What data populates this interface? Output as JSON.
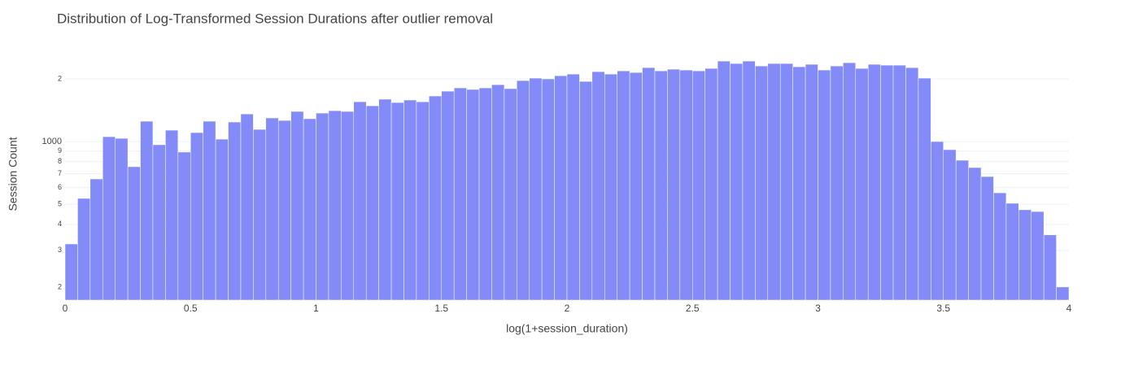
{
  "chart_data": {
    "type": "histogram",
    "title": "Distribution of Log-Transformed Session Durations after outlier removal",
    "x_label": "log(1+session_duration)",
    "y_label": "Session Count",
    "bins": [
      0,
      0.05,
      0.1,
      0.15,
      0.2,
      0.25,
      0.3,
      0.35,
      0.4,
      0.45,
      0.5,
      0.55,
      0.6,
      0.65,
      0.7,
      0.75,
      0.8,
      0.85,
      0.9,
      0.95,
      1,
      1.05,
      1.1,
      1.15,
      1.2,
      1.25,
      1.3,
      1.35,
      1.4,
      1.45,
      1.5,
      1.55,
      1.6,
      1.65,
      1.7,
      1.75,
      1.8,
      1.85,
      1.9,
      1.95,
      2,
      2.05,
      2.1,
      2.15,
      2.2,
      2.25,
      2.3,
      2.35,
      2.4,
      2.45,
      2.5,
      2.55,
      2.6,
      2.65,
      2.7,
      2.75,
      2.8,
      2.85,
      2.9,
      2.95,
      3,
      3.05,
      3.1,
      3.15,
      3.2,
      3.25,
      3.3,
      3.35,
      3.4,
      3.45,
      3.5,
      3.55,
      3.6,
      3.65,
      3.7,
      3.75,
      3.8,
      3.85,
      3.9,
      3.95,
      4
    ],
    "values": [
      322,
      533,
      661,
      1055,
      1036,
      757,
      1252,
      965,
      1134,
      890,
      1104,
      1252,
      1027,
      1241,
      1357,
      1144,
      1298,
      1263,
      1395,
      1287,
      1370,
      1407,
      1395,
      1553,
      1485,
      1597,
      1540,
      1583,
      1553,
      1655,
      1746,
      1810,
      1779,
      1810,
      1876,
      1795,
      1963,
      2017,
      2000,
      2071,
      2109,
      1945,
      2167,
      2109,
      2186,
      2147,
      2266,
      2186,
      2226,
      2206,
      2186,
      2246,
      2436,
      2371,
      2436,
      2307,
      2371,
      2371,
      2287,
      2350,
      2206,
      2307,
      2392,
      2246,
      2350,
      2328,
      2328,
      2266,
      2017,
      1000,
      914,
      813,
      750,
      679,
      567,
      505,
      470,
      461,
      356,
      200
    ],
    "color": "#838bf9",
    "xlim": [
      0,
      4
    ],
    "xticks": [
      0,
      0.5,
      1,
      1.5,
      2,
      2.5,
      3,
      3.5,
      4
    ],
    "ylim": [
      173,
      2790
    ],
    "y_log": true,
    "yticks": [
      {
        "value": 200,
        "label": "2"
      },
      {
        "value": 300,
        "label": "3"
      },
      {
        "value": 400,
        "label": "4"
      },
      {
        "value": 500,
        "label": "5"
      },
      {
        "value": 600,
        "label": "6"
      },
      {
        "value": 700,
        "label": "7"
      },
      {
        "value": 800,
        "label": "8"
      },
      {
        "value": 900,
        "label": "9"
      },
      1000,
      {
        "value": 2000,
        "label": "2"
      }
    ],
    "grid": true
  }
}
